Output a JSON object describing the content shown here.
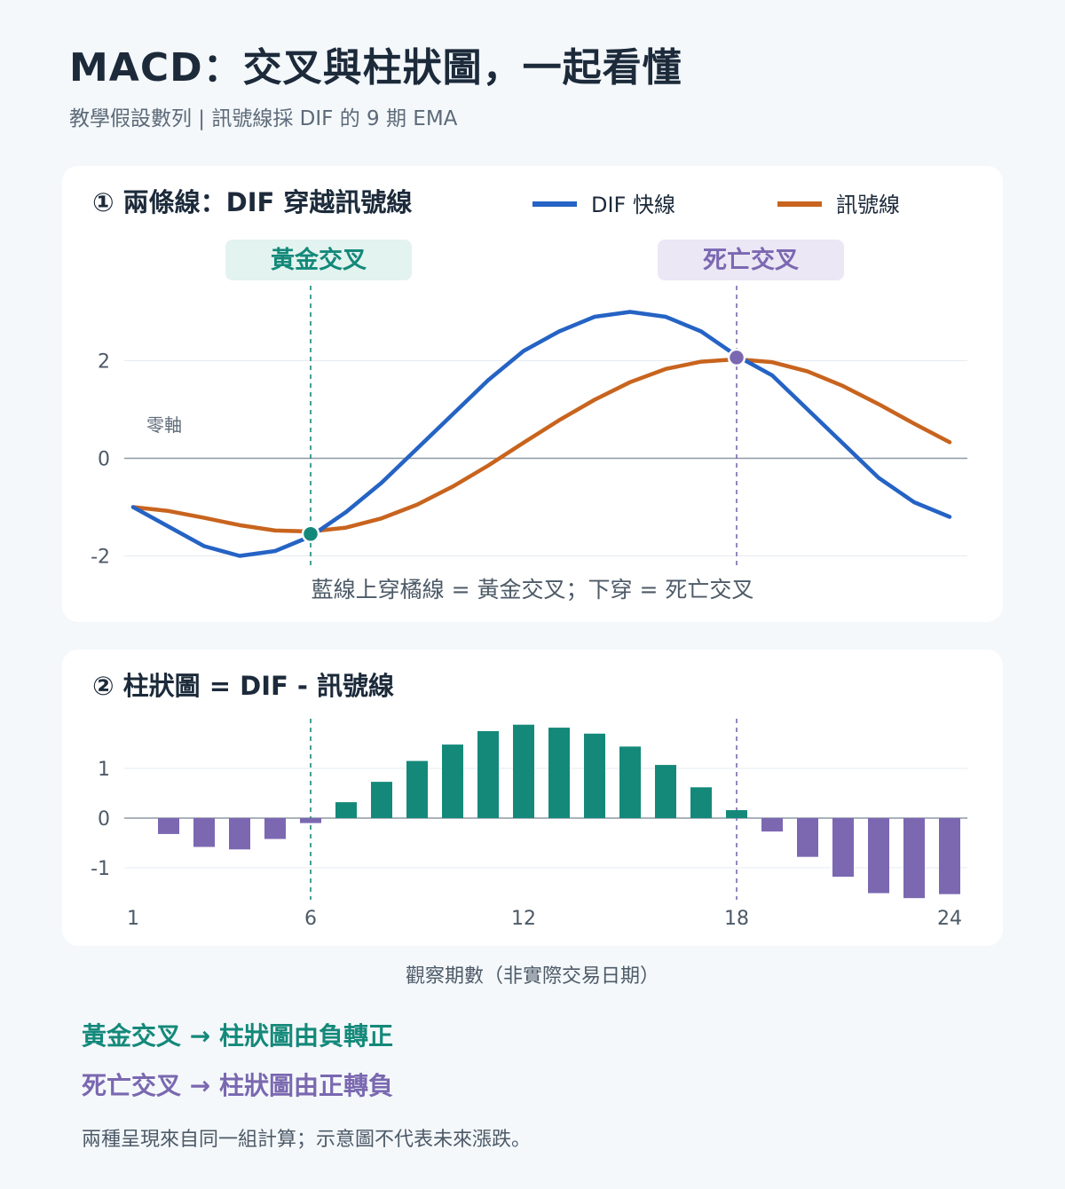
{
  "header": {
    "title": "MACD：交叉與柱狀圖，一起看懂",
    "subtitle": "教學假設數列 | 訊號線採 DIF 的 9 期 EMA"
  },
  "panel1": {
    "title": "① 兩條線：DIF 穿越訊號線",
    "legend_dif": "DIF 快線",
    "legend_signal": "訊號線",
    "golden_label": "黃金交叉",
    "death_label": "死亡交叉",
    "zero_label": "零軸",
    "caption": "藍線上穿橘線 = 黃金交叉；下穿 = 死亡交叉"
  },
  "panel2": {
    "title": "② 柱狀圖 = DIF - 訊號線"
  },
  "x_axis_label": "觀察期數（非實際交易日期）",
  "summary": {
    "golden": "黃金交叉 → 柱狀圖由負轉正",
    "death": "死亡交叉 → 柱狀圖由正轉負"
  },
  "footnote": "兩種呈現來自同一組計算；示意圖不代表未來漲跌。",
  "colors": {
    "dif": "#2563c4",
    "signal": "#c8641e",
    "positive": "#14897a",
    "negative": "#7b68b1",
    "golden_badge_bg": "#e3f3ef",
    "death_badge_bg": "#ebe7f5"
  },
  "chart_data": [
    {
      "type": "line",
      "x": [
        1,
        2,
        3,
        4,
        5,
        6,
        7,
        8,
        9,
        10,
        11,
        12,
        13,
        14,
        15,
        16,
        17,
        18,
        19,
        20,
        21,
        22,
        23,
        24
      ],
      "series": [
        {
          "name": "DIF 快線",
          "values": [
            -1.0,
            -1.4,
            -1.8,
            -2.0,
            -1.9,
            -1.6,
            -1.1,
            -0.5,
            0.2,
            0.9,
            1.6,
            2.2,
            2.6,
            2.9,
            3.0,
            2.9,
            2.6,
            2.1,
            1.7,
            1.0,
            0.3,
            -0.4,
            -0.9,
            -1.2
          ]
        },
        {
          "name": "訊號線",
          "values": [
            -1.0,
            -1.08,
            -1.22,
            -1.37,
            -1.48,
            -1.5,
            -1.42,
            -1.23,
            -0.95,
            -0.58,
            -0.15,
            0.32,
            0.78,
            1.2,
            1.56,
            1.83,
            1.98,
            2.03,
            1.97,
            1.78,
            1.48,
            1.11,
            0.71,
            0.33
          ]
        }
      ],
      "yticks": [
        -2,
        0,
        2
      ],
      "ylim": [
        -2.7,
        3.3
      ],
      "xlim": [
        1,
        24
      ],
      "annotations": [
        {
          "label": "黃金交叉",
          "x": 6
        },
        {
          "label": "死亡交叉",
          "x": 18
        }
      ],
      "grid": true,
      "legend": "top-right"
    },
    {
      "type": "bar",
      "x": [
        1,
        2,
        3,
        4,
        5,
        6,
        7,
        8,
        9,
        10,
        11,
        12,
        13,
        14,
        15,
        16,
        17,
        18,
        19,
        20,
        21,
        22,
        23,
        24
      ],
      "values": [
        0,
        -0.32,
        -0.58,
        -0.63,
        -0.42,
        -0.1,
        0.32,
        0.73,
        1.15,
        1.48,
        1.75,
        1.88,
        1.82,
        1.7,
        1.44,
        1.07,
        0.62,
        0.16,
        -0.27,
        -0.78,
        -1.18,
        -1.51,
        -1.61,
        -1.53
      ],
      "yticks": [
        -1,
        0,
        1
      ],
      "xticks": [
        1,
        6,
        12,
        18,
        24
      ],
      "ylim": [
        -1.75,
        2.0
      ],
      "xlim": [
        1,
        24
      ],
      "annotations": [
        {
          "label": "黃金交叉",
          "x": 6
        },
        {
          "label": "死亡交叉",
          "x": 18
        }
      ],
      "grid": true
    }
  ]
}
